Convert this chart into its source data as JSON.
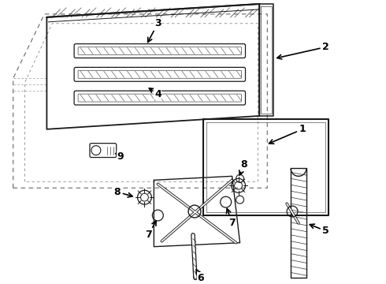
{
  "background_color": "#ffffff",
  "line_color": "#1a1a1a",
  "dash_color": "#555555",
  "label_color": "#000000",
  "figsize": [
    4.9,
    3.6
  ],
  "dpi": 100
}
